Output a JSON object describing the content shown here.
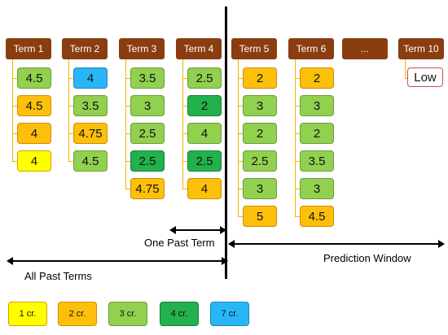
{
  "terms": [
    {
      "label": "Term 1",
      "cells": [
        {
          "v": "4.5",
          "c": "c3"
        },
        {
          "v": "4.5",
          "c": "c2"
        },
        {
          "v": "4",
          "c": "c2"
        },
        {
          "v": "4",
          "c": "c1"
        }
      ]
    },
    {
      "label": "Term 2",
      "cells": [
        {
          "v": "4",
          "c": "c7"
        },
        {
          "v": "3.5",
          "c": "c3"
        },
        {
          "v": "4.75",
          "c": "c2"
        },
        {
          "v": "4.5",
          "c": "c3"
        }
      ]
    },
    {
      "label": "Term 3",
      "cells": [
        {
          "v": "3.5",
          "c": "c3"
        },
        {
          "v": "3",
          "c": "c3"
        },
        {
          "v": "2.5",
          "c": "c3"
        },
        {
          "v": "2.5",
          "c": "c4"
        },
        {
          "v": "4.75",
          "c": "c2"
        }
      ]
    },
    {
      "label": "Term 4",
      "cells": [
        {
          "v": "2.5",
          "c": "c3"
        },
        {
          "v": "2",
          "c": "c4"
        },
        {
          "v": "4",
          "c": "c3"
        },
        {
          "v": "2.5",
          "c": "c4"
        },
        {
          "v": "4",
          "c": "c2"
        }
      ]
    },
    {
      "label": "Term 5",
      "cells": [
        {
          "v": "2",
          "c": "c2"
        },
        {
          "v": "3",
          "c": "c3"
        },
        {
          "v": "2",
          "c": "c3"
        },
        {
          "v": "2.5",
          "c": "c3"
        },
        {
          "v": "3",
          "c": "c3"
        },
        {
          "v": "5",
          "c": "c2"
        }
      ]
    },
    {
      "label": "Term 6",
      "cells": [
        {
          "v": "2",
          "c": "c2"
        },
        {
          "v": "3",
          "c": "c3"
        },
        {
          "v": "2",
          "c": "c3"
        },
        {
          "v": "3.5",
          "c": "c3"
        },
        {
          "v": "3",
          "c": "c3"
        },
        {
          "v": "4.5",
          "c": "c2"
        }
      ]
    },
    {
      "label": "...",
      "cells": []
    },
    {
      "label": "Term 10",
      "cells": []
    }
  ],
  "term10_output": "Low",
  "arrows": {
    "one_past_term": "One Past Term",
    "all_past_terms": "All Past Terms",
    "prediction_window": "Prediction Window"
  },
  "legend": [
    {
      "label": "1 cr.",
      "c": "c1"
    },
    {
      "label": "2 cr.",
      "c": "c2"
    },
    {
      "label": "3 cr.",
      "c": "c3"
    },
    {
      "label": "4 cr.",
      "c": "c4"
    },
    {
      "label": "7 cr.",
      "c": "c7"
    }
  ],
  "colors": {
    "header": "#8a3d0f",
    "connector": "#f0b400",
    "divider": "#000000",
    "low_border": "#c0504d",
    "1_cr": "#ffff00",
    "2_cr": "#fcc00b",
    "3_cr": "#92d050",
    "4_cr": "#22b14c",
    "7_cr": "#29b6f6"
  }
}
